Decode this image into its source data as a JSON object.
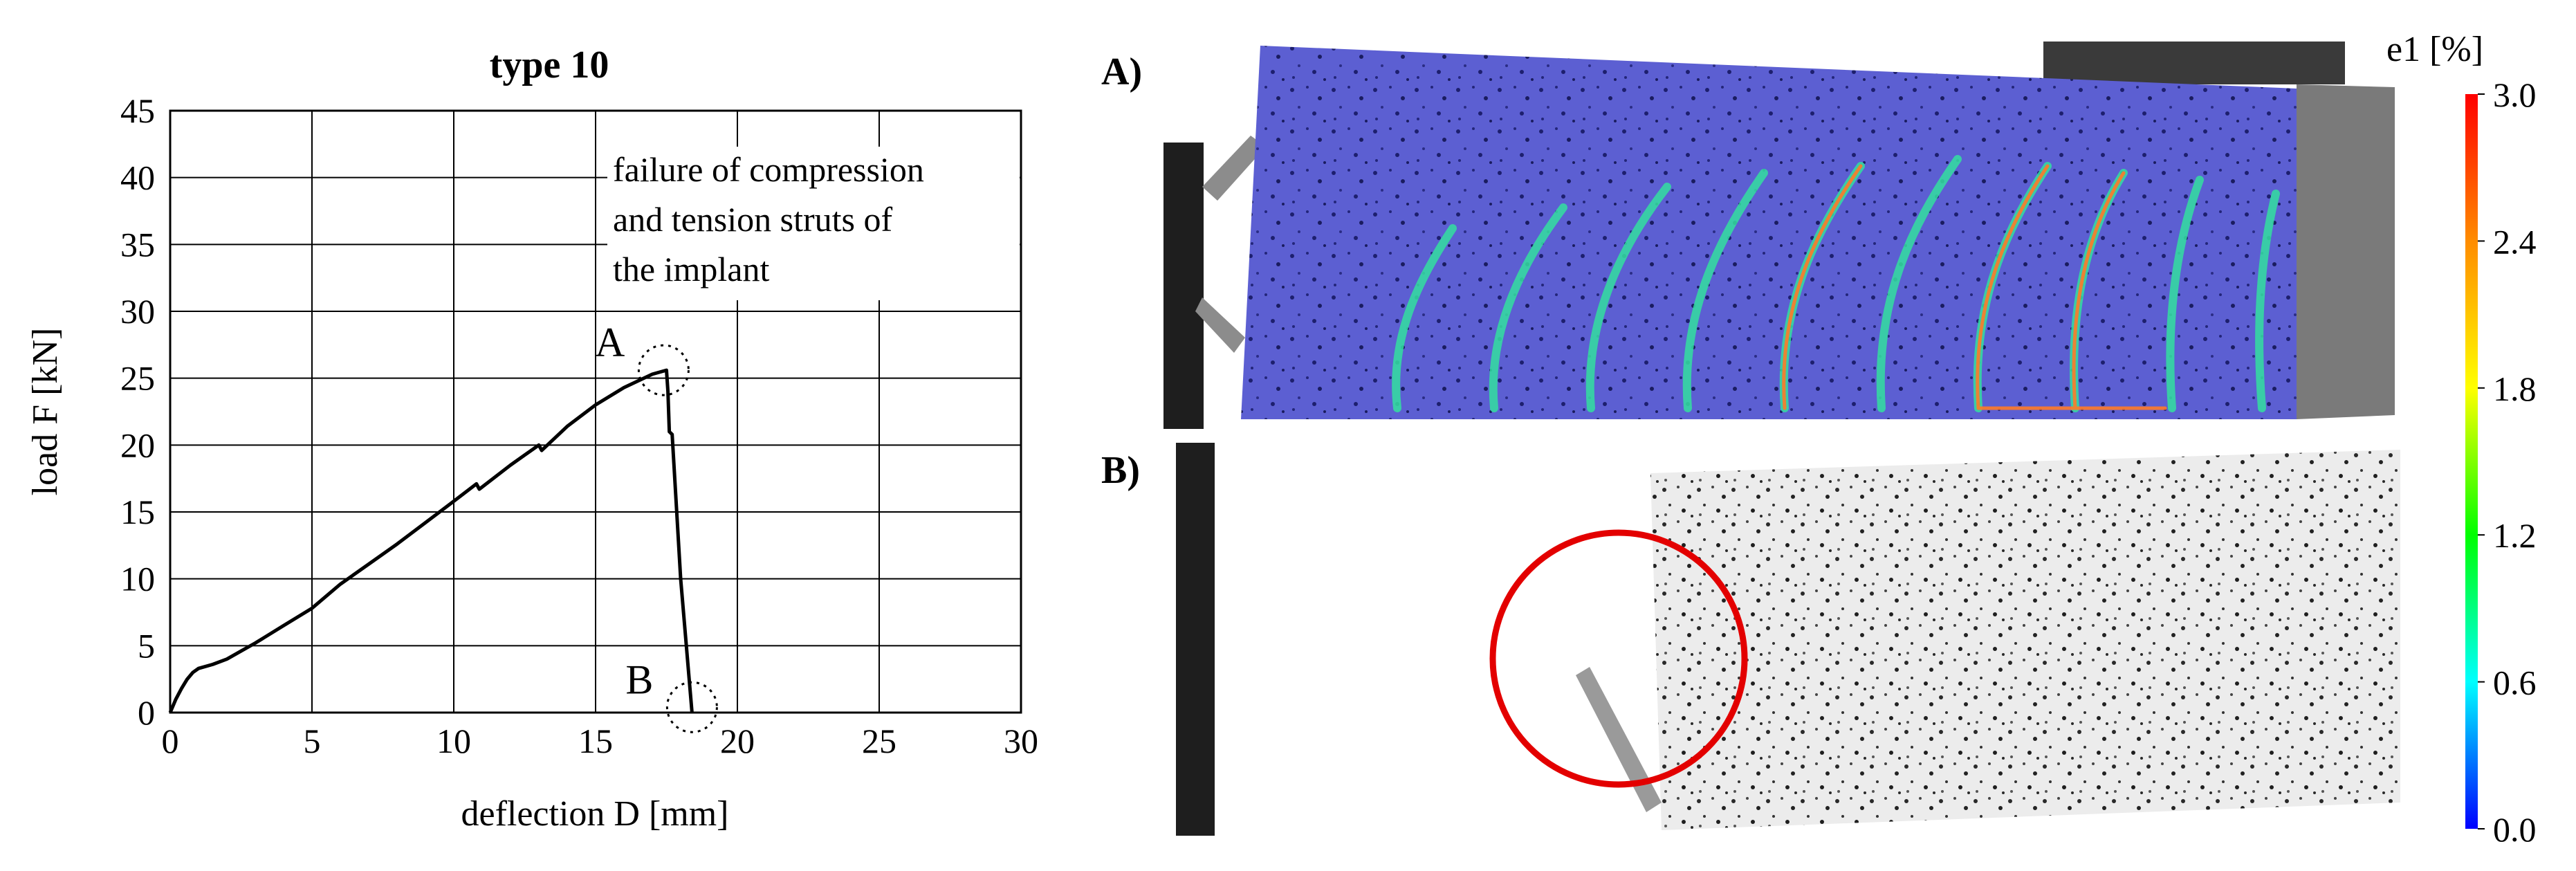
{
  "chart_data": {
    "type": "line",
    "title": "type 10",
    "xlabel": "deflection D [mm]",
    "ylabel": "load F [kN]",
    "xlim": [
      0,
      30
    ],
    "ylim": [
      0,
      45
    ],
    "xticks": [
      0,
      5,
      10,
      15,
      20,
      25,
      30
    ],
    "yticks": [
      0,
      5,
      10,
      15,
      20,
      25,
      30,
      35,
      40,
      45
    ],
    "grid": true,
    "annotation": [
      "failure of compression",
      "and tension struts of",
      "the implant"
    ],
    "points": [
      {
        "label": "A",
        "x": 17.4,
        "y": 25.6
      },
      {
        "label": "B",
        "x": 18.4,
        "y": 0.4
      }
    ],
    "series": [
      {
        "x": [
          0,
          0.2,
          0.4,
          0.6,
          0.8,
          1.0,
          1.5,
          2.0,
          2.5,
          3.0,
          4.0,
          5.0,
          6.0,
          7.0,
          8.0,
          9.0,
          10.0,
          10.8,
          10.9,
          12.0,
          13.0,
          13.1,
          14.0,
          15.0,
          16.0,
          17.0,
          17.5,
          17.55,
          17.6,
          17.7,
          18.0,
          18.4
        ],
        "y": [
          0,
          1.0,
          1.8,
          2.5,
          3.0,
          3.3,
          3.6,
          4.0,
          4.6,
          5.2,
          6.5,
          7.8,
          9.6,
          11.1,
          12.6,
          14.2,
          15.8,
          17.1,
          16.7,
          18.5,
          20.0,
          19.6,
          21.4,
          23.0,
          24.3,
          25.3,
          25.6,
          24.0,
          21.0,
          20.8,
          10.0,
          0.0
        ]
      }
    ]
  },
  "figure": {
    "panel_a_label": "A)",
    "panel_b_label": "B)",
    "colorbar": {
      "title": "e1 [%]",
      "ticks": [
        "3.0",
        "2.4",
        "1.8",
        "1.2",
        "0.6",
        "0.0"
      ],
      "colors": [
        "#ff0000",
        "#ff8c00",
        "#ffff00",
        "#00ff00",
        "#00ffff",
        "#0000ff"
      ]
    }
  }
}
